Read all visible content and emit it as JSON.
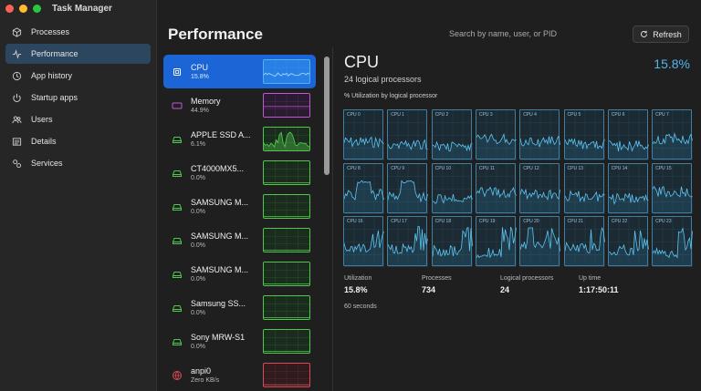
{
  "window": {
    "title": "Task Manager"
  },
  "sidebar": {
    "items": [
      {
        "label": "Processes",
        "icon": "cube-icon",
        "active": false
      },
      {
        "label": "Performance",
        "icon": "pulse-icon",
        "active": true
      },
      {
        "label": "App history",
        "icon": "history-icon",
        "active": false
      },
      {
        "label": "Startup apps",
        "icon": "power-icon",
        "active": false
      },
      {
        "label": "Users",
        "icon": "users-icon",
        "active": false
      },
      {
        "label": "Details",
        "icon": "list-icon",
        "active": false
      },
      {
        "label": "Services",
        "icon": "services-icon",
        "active": false
      }
    ]
  },
  "header": {
    "title": "Performance",
    "search_placeholder": "Search by name, user, or PID",
    "refresh_label": "Refresh"
  },
  "devices": [
    {
      "name": "CPU",
      "value": "15.8%",
      "icon": "cpu-icon",
      "color": "#4fb6f0",
      "active": true
    },
    {
      "name": "Memory",
      "value": "44.9%",
      "icon": "memory-icon",
      "color": "#c257d6",
      "active": false
    },
    {
      "name": "APPLE SSD A...",
      "value": "6.1%",
      "icon": "disk-icon",
      "color": "#4ec94b",
      "active": false
    },
    {
      "name": "CT4000MX5...",
      "value": "0.0%",
      "icon": "disk-icon",
      "color": "#4ec94b",
      "active": false
    },
    {
      "name": "SAMSUNG M...",
      "value": "0.0%",
      "icon": "disk-icon",
      "color": "#4ec94b",
      "active": false
    },
    {
      "name": "SAMSUNG M...",
      "value": "0.0%",
      "icon": "disk-icon",
      "color": "#4ec94b",
      "active": false
    },
    {
      "name": "SAMSUNG M...",
      "value": "0.0%",
      "icon": "disk-icon",
      "color": "#4ec94b",
      "active": false
    },
    {
      "name": "Samsung SS...",
      "value": "0.0%",
      "icon": "disk-icon",
      "color": "#4ec94b",
      "active": false
    },
    {
      "name": "Sony MRW-S1",
      "value": "0.0%",
      "icon": "disk-icon",
      "color": "#4ec94b",
      "active": false
    },
    {
      "name": "anpi0",
      "value": "Zero KB/s",
      "icon": "network-icon",
      "color": "#d94a55",
      "active": false
    }
  ],
  "cpu": {
    "title": "CPU",
    "subtitle": "24 logical processors",
    "utilization": "15.8%",
    "graph_caption": "% Utilization by logical processor",
    "accent_color": "#4fb6f0",
    "cores": [
      "CPU 0",
      "CPU 1",
      "CPU 2",
      "CPU 3",
      "CPU 4",
      "CPU 5",
      "CPU 6",
      "CPU 7",
      "CPU 8",
      "CPU 9",
      "CPU 10",
      "CPU 11",
      "CPU 12",
      "CPU 13",
      "CPU 14",
      "CPU 15",
      "CPU 16",
      "CPU 17",
      "CPU 18",
      "CPU 19",
      "CPU 20",
      "CPU 21",
      "CPU 22",
      "CPU 23"
    ],
    "stats": [
      {
        "label": "Utilization",
        "value": "15.8%"
      },
      {
        "label": "Processes",
        "value": "734"
      },
      {
        "label": "Logical processors",
        "value": "24"
      },
      {
        "label": "Up time",
        "value": "1:17:50:11"
      }
    ],
    "window_label": "60 seconds"
  }
}
